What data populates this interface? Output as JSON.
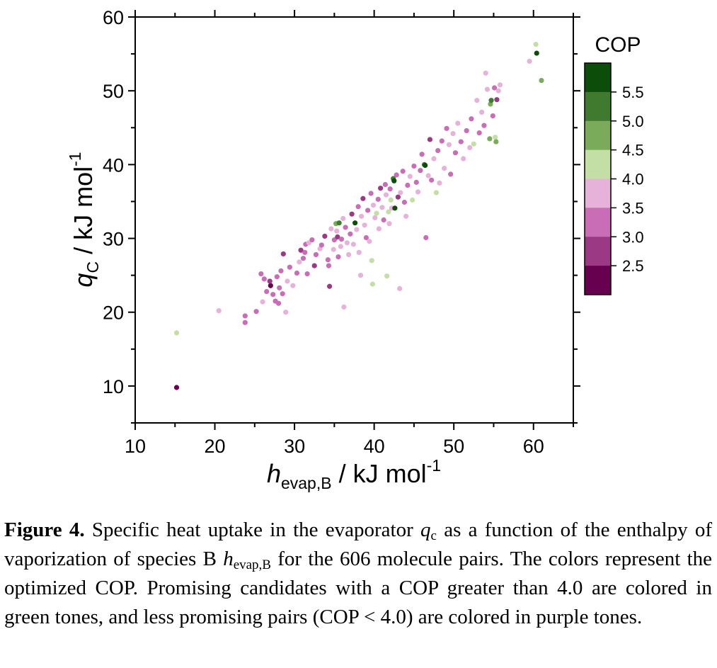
{
  "chart_data": {
    "type": "scatter",
    "xlabel": {
      "main": "h",
      "sub": "evap,B",
      "unit": " / kJ mol",
      "sup": "-1"
    },
    "ylabel": {
      "main": "q",
      "sub": "C",
      "unit": " / kJ mol",
      "sup": "-1"
    },
    "xlim": [
      10,
      65
    ],
    "ylim": [
      5,
      60
    ],
    "x_ticks": [
      10,
      20,
      30,
      40,
      50,
      60
    ],
    "y_ticks": [
      10,
      20,
      30,
      40,
      50,
      60
    ],
    "grid": false,
    "colorbar": {
      "title": "COP",
      "labels": [
        "5.5",
        "5.0",
        "4.5",
        "4.0",
        "3.5",
        "3.0",
        "2.5"
      ],
      "levels": [
        {
          "range": [
            5.5,
            6.0
          ],
          "color": "#0d4d0a"
        },
        {
          "range": [
            5.0,
            5.5
          ],
          "color": "#3f7a2e"
        },
        {
          "range": [
            4.5,
            5.0
          ],
          "color": "#7aab5a"
        },
        {
          "range": [
            4.0,
            4.5
          ],
          "color": "#c4dfa6"
        },
        {
          "range": [
            3.5,
            4.0
          ],
          "color": "#e7b2d9"
        },
        {
          "range": [
            3.0,
            3.5
          ],
          "color": "#c86db6"
        },
        {
          "range": [
            2.5,
            3.0
          ],
          "color": "#9b3985"
        },
        {
          "range": [
            2.0,
            2.5
          ],
          "color": "#67004e"
        }
      ]
    },
    "points": [
      {
        "x": 15.2,
        "y": 9.8,
        "cop": 2.2
      },
      {
        "x": 15.2,
        "y": 17.2,
        "cop": 4.2
      },
      {
        "x": 20.5,
        "y": 20.2,
        "cop": 3.7
      },
      {
        "x": 23.8,
        "y": 18.6,
        "cop": 3.2
      },
      {
        "x": 23.8,
        "y": 19.5,
        "cop": 3.1
      },
      {
        "x": 25.2,
        "y": 20.1,
        "cop": 3.3
      },
      {
        "x": 26.0,
        "y": 21.4,
        "cop": 3.6
      },
      {
        "x": 26.5,
        "y": 22.8,
        "cop": 3.2
      },
      {
        "x": 27.0,
        "y": 23.6,
        "cop": 2.3
      },
      {
        "x": 27.3,
        "y": 22.4,
        "cop": 3.1
      },
      {
        "x": 27.6,
        "y": 21.5,
        "cop": 3.1
      },
      {
        "x": 28.0,
        "y": 21.2,
        "cop": 3.1
      },
      {
        "x": 28.5,
        "y": 22.5,
        "cop": 3.2
      },
      {
        "x": 28.9,
        "y": 20.0,
        "cop": 3.6
      },
      {
        "x": 29.1,
        "y": 24.2,
        "cop": 3.6
      },
      {
        "x": 28.3,
        "y": 25.6,
        "cop": 3.1
      },
      {
        "x": 27.8,
        "y": 24.8,
        "cop": 3.1
      },
      {
        "x": 26.2,
        "y": 24.5,
        "cop": 3.1
      },
      {
        "x": 25.8,
        "y": 25.2,
        "cop": 3.1
      },
      {
        "x": 26.9,
        "y": 24.2,
        "cop": 2.8
      },
      {
        "x": 28.1,
        "y": 23.3,
        "cop": 3.3
      },
      {
        "x": 28.6,
        "y": 27.9,
        "cop": 2.7
      },
      {
        "x": 29.4,
        "y": 26.1,
        "cop": 3.1
      },
      {
        "x": 29.8,
        "y": 23.6,
        "cop": 3.6
      },
      {
        "x": 30.3,
        "y": 25.3,
        "cop": 3.2
      },
      {
        "x": 30.6,
        "y": 26.8,
        "cop": 3.6
      },
      {
        "x": 30.8,
        "y": 28.4,
        "cop": 2.8
      },
      {
        "x": 31.1,
        "y": 27.3,
        "cop": 3.1
      },
      {
        "x": 31.3,
        "y": 28.1,
        "cop": 3.2
      },
      {
        "x": 31.4,
        "y": 29.2,
        "cop": 3.2
      },
      {
        "x": 31.6,
        "y": 25.2,
        "cop": 3.1
      },
      {
        "x": 31.8,
        "y": 29.4,
        "cop": 3.6
      },
      {
        "x": 32.2,
        "y": 29.8,
        "cop": 3.1
      },
      {
        "x": 32.5,
        "y": 26.3,
        "cop": 2.8
      },
      {
        "x": 32.7,
        "y": 27.8,
        "cop": 3.2
      },
      {
        "x": 33.2,
        "y": 28.6,
        "cop": 3.7
      },
      {
        "x": 33.4,
        "y": 29.1,
        "cop": 3.1
      },
      {
        "x": 33.8,
        "y": 30.3,
        "cop": 2.8
      },
      {
        "x": 34.2,
        "y": 27.1,
        "cop": 3.2
      },
      {
        "x": 34.3,
        "y": 26.3,
        "cop": 3.1
      },
      {
        "x": 34.4,
        "y": 23.5,
        "cop": 2.8
      },
      {
        "x": 34.6,
        "y": 31.3,
        "cop": 3.6
      },
      {
        "x": 34.9,
        "y": 28.5,
        "cop": 3.6
      },
      {
        "x": 35.0,
        "y": 29.8,
        "cop": 3.1
      },
      {
        "x": 35.2,
        "y": 32.0,
        "cop": 4.7
      },
      {
        "x": 35.3,
        "y": 31.0,
        "cop": 3.7
      },
      {
        "x": 35.4,
        "y": 30.2,
        "cop": 2.9
      },
      {
        "x": 35.5,
        "y": 27.5,
        "cop": 3.2
      },
      {
        "x": 35.6,
        "y": 32.1,
        "cop": 5.3
      },
      {
        "x": 35.8,
        "y": 28.9,
        "cop": 3.7
      },
      {
        "x": 35.9,
        "y": 29.9,
        "cop": 3.2
      },
      {
        "x": 36.1,
        "y": 32.7,
        "cop": 3.7
      },
      {
        "x": 36.2,
        "y": 20.7,
        "cop": 3.6
      },
      {
        "x": 36.4,
        "y": 31.5,
        "cop": 3.1
      },
      {
        "x": 36.6,
        "y": 29.4,
        "cop": 3.7
      },
      {
        "x": 36.8,
        "y": 27.8,
        "cop": 3.6
      },
      {
        "x": 37.0,
        "y": 30.6,
        "cop": 3.1
      },
      {
        "x": 37.2,
        "y": 33.3,
        "cop": 2.8
      },
      {
        "x": 37.4,
        "y": 29.2,
        "cop": 3.6
      },
      {
        "x": 37.6,
        "y": 32.1,
        "cop": 5.7
      },
      {
        "x": 37.8,
        "y": 31.2,
        "cop": 3.6
      },
      {
        "x": 38.0,
        "y": 34.3,
        "cop": 3.1
      },
      {
        "x": 38.1,
        "y": 28.1,
        "cop": 3.7
      },
      {
        "x": 38.3,
        "y": 25.0,
        "cop": 3.6
      },
      {
        "x": 38.4,
        "y": 33.0,
        "cop": 3.7
      },
      {
        "x": 38.6,
        "y": 35.4,
        "cop": 2.8
      },
      {
        "x": 38.8,
        "y": 31.8,
        "cop": 3.7
      },
      {
        "x": 39.0,
        "y": 30.1,
        "cop": 3.2
      },
      {
        "x": 39.2,
        "y": 33.8,
        "cop": 3.1
      },
      {
        "x": 39.4,
        "y": 29.6,
        "cop": 3.6
      },
      {
        "x": 39.6,
        "y": 36.1,
        "cop": 3.2
      },
      {
        "x": 39.7,
        "y": 27.0,
        "cop": 4.2
      },
      {
        "x": 39.8,
        "y": 23.8,
        "cop": 4.2
      },
      {
        "x": 39.9,
        "y": 34.5,
        "cop": 3.6
      },
      {
        "x": 40.1,
        "y": 32.8,
        "cop": 3.6
      },
      {
        "x": 40.3,
        "y": 33.4,
        "cop": 4.2
      },
      {
        "x": 40.5,
        "y": 35.3,
        "cop": 3.2
      },
      {
        "x": 40.6,
        "y": 31.3,
        "cop": 3.7
      },
      {
        "x": 40.8,
        "y": 36.8,
        "cop": 2.8
      },
      {
        "x": 41.0,
        "y": 34.2,
        "cop": 3.6
      },
      {
        "x": 41.2,
        "y": 32.5,
        "cop": 3.2
      },
      {
        "x": 41.4,
        "y": 37.3,
        "cop": 3.1
      },
      {
        "x": 41.5,
        "y": 35.9,
        "cop": 3.6
      },
      {
        "x": 41.6,
        "y": 24.9,
        "cop": 4.2
      },
      {
        "x": 41.8,
        "y": 33.6,
        "cop": 4.1
      },
      {
        "x": 41.9,
        "y": 32.0,
        "cop": 3.6
      },
      {
        "x": 42.0,
        "y": 36.7,
        "cop": 3.2
      },
      {
        "x": 42.1,
        "y": 35.2,
        "cop": 4.2
      },
      {
        "x": 42.2,
        "y": 34.1,
        "cop": 3.7
      },
      {
        "x": 42.4,
        "y": 38.1,
        "cop": 5.3
      },
      {
        "x": 42.5,
        "y": 37.8,
        "cop": 5.8
      },
      {
        "x": 42.6,
        "y": 34.1,
        "cop": 5.8
      },
      {
        "x": 42.8,
        "y": 38.6,
        "cop": 3.1
      },
      {
        "x": 43.0,
        "y": 35.6,
        "cop": 2.9
      },
      {
        "x": 43.2,
        "y": 23.2,
        "cop": 3.6
      },
      {
        "x": 43.3,
        "y": 36.2,
        "cop": 3.6
      },
      {
        "x": 43.6,
        "y": 39.1,
        "cop": 3.2
      },
      {
        "x": 43.8,
        "y": 34.9,
        "cop": 3.1
      },
      {
        "x": 44.0,
        "y": 33.0,
        "cop": 3.6
      },
      {
        "x": 44.2,
        "y": 37.2,
        "cop": 3.2
      },
      {
        "x": 44.5,
        "y": 38.4,
        "cop": 3.6
      },
      {
        "x": 44.8,
        "y": 35.2,
        "cop": 4.2
      },
      {
        "x": 45.0,
        "y": 39.8,
        "cop": 3.1
      },
      {
        "x": 45.3,
        "y": 37.6,
        "cop": 3.1
      },
      {
        "x": 45.5,
        "y": 36.3,
        "cop": 3.7
      },
      {
        "x": 45.8,
        "y": 39.2,
        "cop": 3.2
      },
      {
        "x": 46.0,
        "y": 41.4,
        "cop": 3.1
      },
      {
        "x": 46.3,
        "y": 40.0,
        "cop": 5.3
      },
      {
        "x": 46.4,
        "y": 39.9,
        "cop": 5.8
      },
      {
        "x": 46.5,
        "y": 30.1,
        "cop": 3.2
      },
      {
        "x": 46.8,
        "y": 38.5,
        "cop": 3.6
      },
      {
        "x": 47.0,
        "y": 43.4,
        "cop": 2.8
      },
      {
        "x": 47.2,
        "y": 37.9,
        "cop": 3.2
      },
      {
        "x": 47.5,
        "y": 40.8,
        "cop": 3.7
      },
      {
        "x": 47.8,
        "y": 36.2,
        "cop": 4.2
      },
      {
        "x": 48.0,
        "y": 41.9,
        "cop": 3.1
      },
      {
        "x": 48.2,
        "y": 37.5,
        "cop": 3.6
      },
      {
        "x": 48.5,
        "y": 43.2,
        "cop": 3.2
      },
      {
        "x": 48.8,
        "y": 39.5,
        "cop": 3.6
      },
      {
        "x": 49.1,
        "y": 44.9,
        "cop": 3.1
      },
      {
        "x": 49.4,
        "y": 42.7,
        "cop": 3.7
      },
      {
        "x": 49.6,
        "y": 38.7,
        "cop": 3.1
      },
      {
        "x": 49.9,
        "y": 44.2,
        "cop": 3.6
      },
      {
        "x": 50.2,
        "y": 41.6,
        "cop": 3.2
      },
      {
        "x": 50.5,
        "y": 45.6,
        "cop": 3.7
      },
      {
        "x": 50.9,
        "y": 43.1,
        "cop": 3.1
      },
      {
        "x": 51.2,
        "y": 40.8,
        "cop": 3.6
      },
      {
        "x": 51.6,
        "y": 44.6,
        "cop": 3.2
      },
      {
        "x": 52.0,
        "y": 42.3,
        "cop": 3.7
      },
      {
        "x": 52.2,
        "y": 46.2,
        "cop": 3.1
      },
      {
        "x": 52.5,
        "y": 42.8,
        "cop": 4.2
      },
      {
        "x": 52.9,
        "y": 48.7,
        "cop": 3.6
      },
      {
        "x": 53.2,
        "y": 44.3,
        "cop": 3.2
      },
      {
        "x": 53.5,
        "y": 47.1,
        "cop": 3.6
      },
      {
        "x": 53.8,
        "y": 45.3,
        "cop": 3.1
      },
      {
        "x": 54.0,
        "y": 52.4,
        "cop": 3.7
      },
      {
        "x": 54.2,
        "y": 50.2,
        "cop": 3.6
      },
      {
        "x": 54.5,
        "y": 43.5,
        "cop": 4.8
      },
      {
        "x": 54.6,
        "y": 48.2,
        "cop": 4.8
      },
      {
        "x": 54.7,
        "y": 48.7,
        "cop": 5.1
      },
      {
        "x": 54.9,
        "y": 46.6,
        "cop": 3.2
      },
      {
        "x": 55.1,
        "y": 50.4,
        "cop": 3.1
      },
      {
        "x": 55.2,
        "y": 43.7,
        "cop": 4.2
      },
      {
        "x": 55.3,
        "y": 43.1,
        "cop": 4.8
      },
      {
        "x": 55.4,
        "y": 48.8,
        "cop": 2.8
      },
      {
        "x": 55.6,
        "y": 50.0,
        "cop": 3.6
      },
      {
        "x": 55.8,
        "y": 50.8,
        "cop": 3.6
      },
      {
        "x": 59.5,
        "y": 54.0,
        "cop": 3.7
      },
      {
        "x": 60.3,
        "y": 56.3,
        "cop": 4.2
      },
      {
        "x": 60.4,
        "y": 55.1,
        "cop": 5.8
      },
      {
        "x": 61.0,
        "y": 51.4,
        "cop": 4.8
      }
    ]
  },
  "caption": {
    "label": "Figure 4.",
    "text_1": " Specific heat uptake in the evaporator ",
    "var_1": "q",
    "var_1_sub": "c",
    "text_2": " as a function of the enthalpy of vaporization of species B ",
    "var_2": "h",
    "var_2_sub": "evap,B",
    "text_3": " for the 606 molecule pairs. The colors represent the optimized COP. Promising candidates with a COP greater than 4.0 are colored in green tones, and less promising pairs (COP < 4.0) are colored in purple tones."
  }
}
